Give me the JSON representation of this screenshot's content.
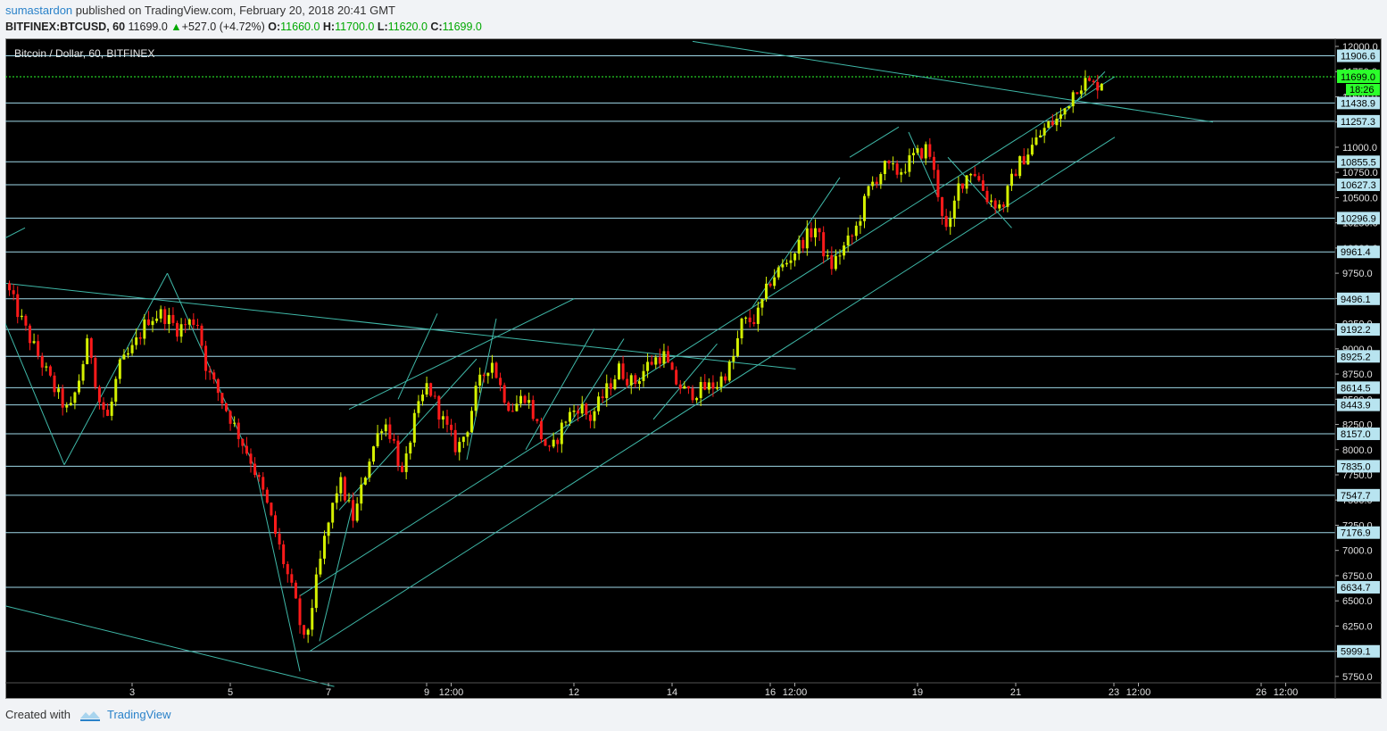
{
  "header": {
    "author": "sumastardon",
    "published_text": "published on TradingView.com, February 20, 2018 20:41 GMT"
  },
  "ohlc": {
    "symbol": "BITFINEX:BTCUSD, 60",
    "last": "11699.0",
    "change": "+527.0 (+4.72%)",
    "o_label": "O:",
    "o": "11660.0",
    "h_label": "H:",
    "h": "11700.0",
    "l_label": "L:",
    "l": "11620.0",
    "c_label": "C:",
    "c": "11699.0"
  },
  "footer": {
    "created_with": "Created with",
    "brand": "TradingView"
  },
  "colors": {
    "background": "#000000",
    "up_candle": "#d4f000",
    "down_candle": "#ff1a1a",
    "trend_line": "#3fb8a8",
    "level_line": "#9fd8e8",
    "price_badge": "#b8e4f0",
    "current_price": "#2bff2b"
  },
  "chart_data": {
    "type": "candlestick",
    "title": "Bitcoin / Dollar, 60, BITFINEX",
    "y_axis_ticks": [
      12000,
      11750,
      11500,
      11250,
      11000,
      10750,
      10500,
      10250,
      10000,
      9750,
      9500,
      9250,
      9000,
      8750,
      8500,
      8250,
      8000,
      7750,
      7500,
      7250,
      7000,
      6750,
      6500,
      6250,
      6000,
      5750
    ],
    "y_tick_labels": [
      "12000.0",
      "11750.0",
      "11500.0",
      "11250.0",
      "11000.0",
      "10750.0",
      "10500.0",
      "10250.0",
      "10000.0",
      "9750.0",
      "9500.0",
      "9250.0",
      "9000.0",
      "8750.0",
      "8500.0",
      "8250.0",
      "8000.0",
      "7750.0",
      "7500.0",
      "7250.0",
      "7000.0",
      "6750.0",
      "6500.0",
      "6250.0",
      "6000.0",
      "5750.0"
    ],
    "ylim": [
      5650,
      12100
    ],
    "x_ticks": [
      {
        "label": "3",
        "t": 2
      },
      {
        "label": "5",
        "t": 4
      },
      {
        "label": "7",
        "t": 6
      },
      {
        "label": "9",
        "t": 8
      },
      {
        "label": "12:00",
        "t": 8.5
      },
      {
        "label": "12",
        "t": 11
      },
      {
        "label": "14",
        "t": 13
      },
      {
        "label": "16",
        "t": 15
      },
      {
        "label": "12:00",
        "t": 15.5
      },
      {
        "label": "19",
        "t": 18
      },
      {
        "label": "21",
        "t": 20
      },
      {
        "label": "23",
        "t": 22
      },
      {
        "label": "12:00",
        "t": 22.5
      },
      {
        "label": "26",
        "t": 25
      },
      {
        "label": "12:00",
        "t": 25.5
      }
    ],
    "horizontal_levels": [
      11906.6,
      11438.9,
      11257.3,
      10855.5,
      10627.3,
      10296.9,
      9961.4,
      9496.1,
      9192.2,
      8925.2,
      8614.5,
      8443.9,
      8157.0,
      7835.0,
      7547.7,
      7176.9,
      6634.7,
      5999.1
    ],
    "level_labels": [
      "11906.6",
      "11438.9",
      "11257.3",
      "10855.5",
      "10627.3",
      "10296.9",
      "9961.4",
      "9496.1",
      "9192.2",
      "8925.2",
      "8614.5",
      "8443.9",
      "8157.0",
      "7835.0",
      "7547.7",
      "7176.9",
      "6634.7",
      "5999.1"
    ],
    "current_price": 11699.0,
    "current_price_label": "11699.0",
    "countdown_label": "18:26",
    "path_points": [
      [
        0.0,
        9650
      ],
      [
        0.4,
        9200
      ],
      [
        0.7,
        8900
      ],
      [
        1.0,
        8600
      ],
      [
        1.3,
        8350
      ],
      [
        1.5,
        8700
      ],
      [
        1.7,
        9100
      ],
      [
        1.9,
        8500
      ],
      [
        2.1,
        8300
      ],
      [
        2.3,
        8800
      ],
      [
        2.6,
        9000
      ],
      [
        2.9,
        9300
      ],
      [
        3.2,
        9350
      ],
      [
        3.5,
        9200
      ],
      [
        3.9,
        9300
      ],
      [
        4.1,
        8800
      ],
      [
        4.4,
        8500
      ],
      [
        4.7,
        8200
      ],
      [
        5.0,
        7900
      ],
      [
        5.3,
        7500
      ],
      [
        5.6,
        7000
      ],
      [
        5.9,
        6500
      ],
      [
        6.1,
        6050
      ],
      [
        6.3,
        6600
      ],
      [
        6.5,
        7100
      ],
      [
        6.8,
        7700
      ],
      [
        7.1,
        7300
      ],
      [
        7.4,
        7900
      ],
      [
        7.7,
        8300
      ],
      [
        7.9,
        8100
      ],
      [
        8.1,
        7700
      ],
      [
        8.3,
        8250
      ],
      [
        8.6,
        8650
      ],
      [
        8.9,
        8300
      ],
      [
        9.2,
        8000
      ],
      [
        9.4,
        8200
      ],
      [
        9.6,
        8600
      ],
      [
        9.9,
        8900
      ],
      [
        10.1,
        8600
      ],
      [
        10.3,
        8400
      ],
      [
        10.6,
        8550
      ],
      [
        10.9,
        8150
      ],
      [
        11.1,
        7950
      ],
      [
        11.4,
        8300
      ],
      [
        11.7,
        8450
      ],
      [
        11.9,
        8300
      ],
      [
        12.2,
        8550
      ],
      [
        12.5,
        8800
      ],
      [
        12.8,
        8650
      ],
      [
        13.1,
        8850
      ],
      [
        13.4,
        8950
      ],
      [
        13.6,
        8700
      ],
      [
        13.9,
        8550
      ],
      [
        14.2,
        8600
      ],
      [
        14.5,
        8650
      ],
      [
        14.8,
        8850
      ],
      [
        15.0,
        9250
      ],
      [
        15.3,
        9300
      ],
      [
        15.6,
        9700
      ],
      [
        15.9,
        9850
      ],
      [
        16.2,
        10050
      ],
      [
        16.5,
        10200
      ],
      [
        16.8,
        9800
      ],
      [
        17.0,
        9950
      ],
      [
        17.3,
        10150
      ],
      [
        17.6,
        10600
      ],
      [
        17.9,
        10800
      ],
      [
        18.2,
        10750
      ],
      [
        18.5,
        10900
      ],
      [
        18.8,
        11000
      ],
      [
        19.0,
        10550
      ],
      [
        19.2,
        10100
      ],
      [
        19.4,
        10600
      ],
      [
        19.7,
        10800
      ],
      [
        20.0,
        10500
      ],
      [
        20.3,
        10400
      ],
      [
        20.6,
        10800
      ],
      [
        20.9,
        11000
      ],
      [
        21.2,
        11200
      ],
      [
        21.5,
        11300
      ],
      [
        21.8,
        11600
      ],
      [
        22.0,
        11650
      ],
      [
        22.2,
        11600
      ],
      [
        22.4,
        11699
      ]
    ],
    "trend_lines": [
      [
        [
          14.0,
          12050
        ],
        [
          24.6,
          11250
        ]
      ],
      [
        [
          6.2,
          6000
        ],
        [
          22.6,
          11100
        ]
      ],
      [
        [
          6.0,
          6550
        ],
        [
          22.6,
          11700
        ]
      ],
      [
        [
          0.0,
          9650
        ],
        [
          16.1,
          8800
        ]
      ],
      [
        [
          0.0,
          6450
        ],
        [
          6.7,
          5650
        ]
      ],
      [
        [
          0.0,
          10100
        ],
        [
          0.4,
          10200
        ]
      ],
      [
        [
          0.0,
          9250
        ],
        [
          1.2,
          7850
        ]
      ],
      [
        [
          1.2,
          7850
        ],
        [
          3.3,
          9750
        ]
      ],
      [
        [
          3.3,
          9750
        ],
        [
          5.1,
          7800
        ]
      ],
      [
        [
          5.1,
          7800
        ],
        [
          6.0,
          5800
        ]
      ],
      [
        [
          6.4,
          6100
        ],
        [
          7.1,
          7500
        ]
      ],
      [
        [
          6.8,
          7400
        ],
        [
          9.6,
          8900
        ]
      ],
      [
        [
          7.0,
          8400
        ],
        [
          11.6,
          9500
        ]
      ],
      [
        [
          8.0,
          8500
        ],
        [
          8.8,
          9350
        ]
      ],
      [
        [
          9.4,
          7900
        ],
        [
          10.0,
          9300
        ]
      ],
      [
        [
          10.6,
          8000
        ],
        [
          12.0,
          9200
        ]
      ],
      [
        [
          11.3,
          8100
        ],
        [
          12.6,
          9100
        ]
      ],
      [
        [
          13.2,
          8300
        ],
        [
          14.5,
          9050
        ]
      ],
      [
        [
          15.2,
          9400
        ],
        [
          17.0,
          10700
        ]
      ],
      [
        [
          17.2,
          10900
        ],
        [
          18.2,
          11200
        ]
      ],
      [
        [
          18.4,
          11150
        ],
        [
          19.0,
          10500
        ]
      ],
      [
        [
          19.2,
          10900
        ],
        [
          20.5,
          10200
        ]
      ],
      [
        [
          21.1,
          11100
        ],
        [
          22.4,
          11750
        ]
      ]
    ]
  }
}
